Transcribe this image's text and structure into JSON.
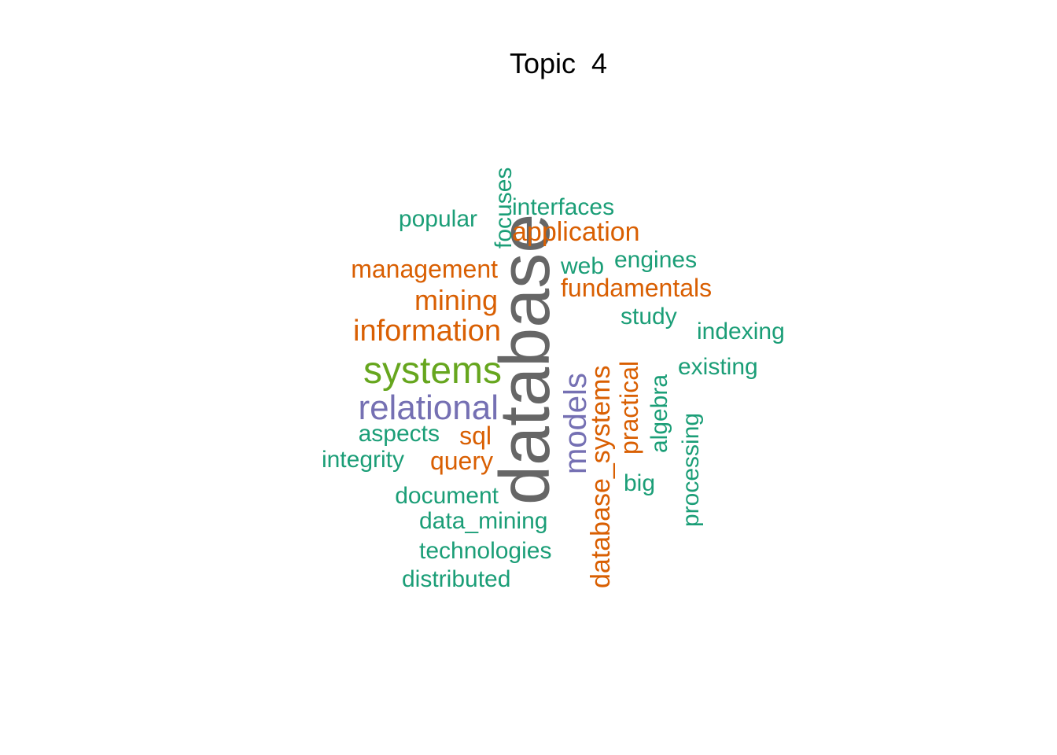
{
  "title": "Topic  4",
  "colors": {
    "gray": "#666666",
    "green": "#1b9e77",
    "orange": "#d95f02",
    "lime": "#66a61e",
    "purple": "#7570b3"
  },
  "words": [
    {
      "text": "database",
      "color": "gray"
    },
    {
      "text": "systems",
      "color": "lime"
    },
    {
      "text": "relational",
      "color": "purple"
    },
    {
      "text": "models",
      "color": "purple"
    },
    {
      "text": "information",
      "color": "orange"
    },
    {
      "text": "database_systems",
      "color": "orange"
    },
    {
      "text": "mining",
      "color": "orange"
    },
    {
      "text": "application",
      "color": "orange"
    },
    {
      "text": "fundamentals",
      "color": "orange"
    },
    {
      "text": "management",
      "color": "orange"
    },
    {
      "text": "practical",
      "color": "orange"
    },
    {
      "text": "sql",
      "color": "orange"
    },
    {
      "text": "query",
      "color": "orange"
    },
    {
      "text": "popular",
      "color": "green"
    },
    {
      "text": "focuses",
      "color": "green"
    },
    {
      "text": "interfaces",
      "color": "green"
    },
    {
      "text": "web",
      "color": "green"
    },
    {
      "text": "engines",
      "color": "green"
    },
    {
      "text": "study",
      "color": "green"
    },
    {
      "text": "indexing",
      "color": "green"
    },
    {
      "text": "existing",
      "color": "green"
    },
    {
      "text": "algebra",
      "color": "green"
    },
    {
      "text": "processing",
      "color": "green"
    },
    {
      "text": "aspects",
      "color": "green"
    },
    {
      "text": "integrity",
      "color": "green"
    },
    {
      "text": "document",
      "color": "green"
    },
    {
      "text": "big",
      "color": "green"
    },
    {
      "text": "data_mining",
      "color": "green"
    },
    {
      "text": "technologies",
      "color": "green"
    },
    {
      "text": "distributed",
      "color": "green"
    }
  ]
}
